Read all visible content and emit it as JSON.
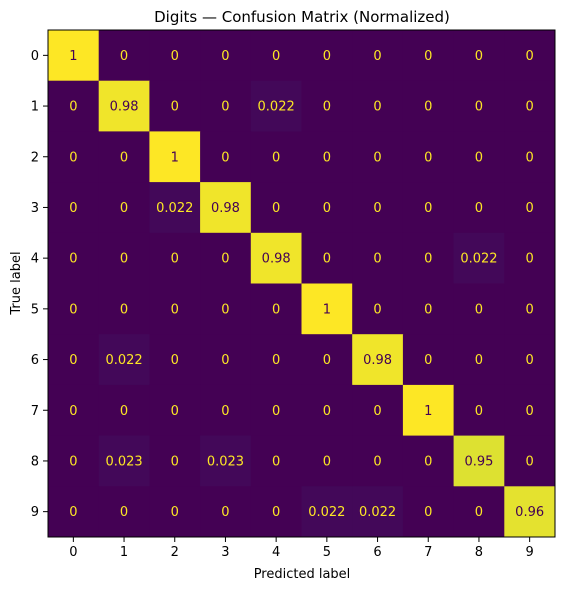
{
  "chart_data": {
    "type": "heatmap",
    "title": "Digits — Confusion Matrix (Normalized)",
    "xlabel": "Predicted label",
    "ylabel": "True label",
    "x_categories": [
      "0",
      "1",
      "2",
      "3",
      "4",
      "5",
      "6",
      "7",
      "8",
      "9"
    ],
    "y_categories": [
      "0",
      "1",
      "2",
      "3",
      "4",
      "5",
      "6",
      "7",
      "8",
      "9"
    ],
    "values": [
      [
        1,
        0,
        0,
        0,
        0,
        0,
        0,
        0,
        0,
        0
      ],
      [
        0,
        0.98,
        0,
        0,
        0.022,
        0,
        0,
        0,
        0,
        0
      ],
      [
        0,
        0,
        1,
        0,
        0,
        0,
        0,
        0,
        0,
        0
      ],
      [
        0,
        0,
        0.022,
        0.98,
        0,
        0,
        0,
        0,
        0,
        0
      ],
      [
        0,
        0,
        0,
        0,
        0.98,
        0,
        0,
        0,
        0.022,
        0
      ],
      [
        0,
        0,
        0,
        0,
        0,
        1,
        0,
        0,
        0,
        0
      ],
      [
        0,
        0.022,
        0,
        0,
        0,
        0,
        0.98,
        0,
        0,
        0
      ],
      [
        0,
        0,
        0,
        0,
        0,
        0,
        0,
        1,
        0,
        0
      ],
      [
        0,
        0.023,
        0,
        0.023,
        0,
        0,
        0,
        0,
        0.95,
        0
      ],
      [
        0,
        0,
        0,
        0,
        0,
        0.022,
        0.022,
        0,
        0,
        0.96
      ]
    ],
    "colormap": "viridis",
    "value_range": [
      0,
      1
    ],
    "annotation_color": "#fde725",
    "grid": false,
    "legend": "none"
  }
}
